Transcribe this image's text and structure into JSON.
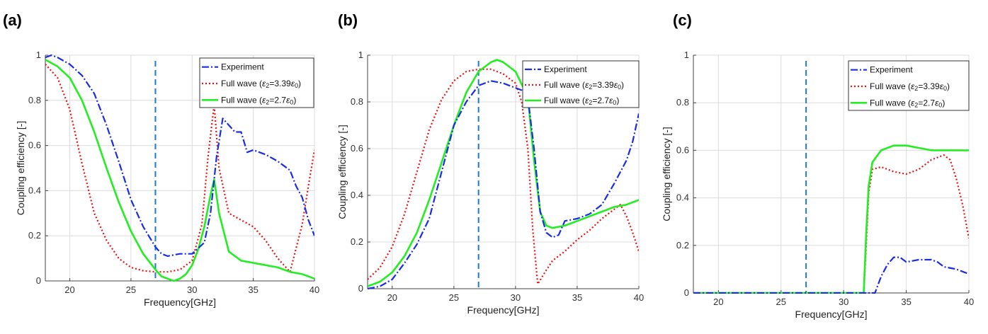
{
  "chart_data": [
    {
      "type": "line",
      "panel_label": "(a)",
      "xlabel": "Frequency[GHz]",
      "ylabel": "Coupling efficiency [-]",
      "xlim": [
        18,
        40
      ],
      "ylim": [
        0,
        1
      ],
      "xticks": [
        20,
        25,
        30,
        35,
        40
      ],
      "yticks": [
        0,
        0.2,
        0.4,
        0.6,
        0.8,
        1
      ],
      "ytick_labels": [
        "0",
        "0.2",
        "0.4",
        "0.6",
        "0.8",
        "1"
      ],
      "grid": true,
      "legend_position": "top-right",
      "vline_x": 27,
      "series": [
        {
          "name": "Experiment",
          "color": "#1a2de6",
          "style": "dashdot",
          "x": [
            18,
            18.5,
            19,
            20,
            21,
            22,
            23,
            24,
            25,
            26,
            27,
            27.5,
            28,
            29,
            30,
            31,
            31.5,
            32,
            32.5,
            33,
            33.5,
            34,
            34.5,
            35,
            35.5,
            36,
            37,
            38,
            38.5,
            39,
            39.5,
            40
          ],
          "y": [
            0.99,
            1.0,
            0.99,
            0.96,
            0.91,
            0.83,
            0.69,
            0.53,
            0.36,
            0.24,
            0.15,
            0.12,
            0.11,
            0.12,
            0.12,
            0.17,
            0.3,
            0.55,
            0.72,
            0.69,
            0.66,
            0.66,
            0.57,
            0.58,
            0.57,
            0.56,
            0.53,
            0.49,
            0.42,
            0.37,
            0.27,
            0.2
          ]
        },
        {
          "name": "Full wave (ε2=3.39ε0)",
          "color": "#ee1111",
          "style": "dotted",
          "x": [
            18,
            19,
            20,
            21,
            22,
            23,
            24,
            25,
            26,
            27,
            28,
            29,
            30,
            30.8,
            31.3,
            31.8,
            32.2,
            33,
            34,
            35,
            36,
            37,
            38,
            39,
            39.5,
            40
          ],
          "y": [
            0.96,
            0.9,
            0.76,
            0.52,
            0.3,
            0.18,
            0.1,
            0.06,
            0.045,
            0.04,
            0.04,
            0.05,
            0.09,
            0.25,
            0.55,
            0.78,
            0.5,
            0.3,
            0.27,
            0.24,
            0.18,
            0.1,
            0.04,
            0.25,
            0.42,
            0.58
          ]
        },
        {
          "name": "Full wave (ε2=2.7ε0)",
          "color": "#22ee22",
          "style": "solid",
          "x": [
            18,
            19,
            20,
            21,
            22,
            23,
            24,
            25,
            26,
            27,
            27.5,
            28,
            28.5,
            29,
            29.5,
            30,
            30.5,
            31,
            31.5,
            31.8,
            32.2,
            33,
            34,
            35,
            36,
            37,
            38,
            39,
            40
          ],
          "y": [
            0.98,
            0.95,
            0.9,
            0.8,
            0.66,
            0.5,
            0.35,
            0.22,
            0.12,
            0.05,
            0.02,
            0.01,
            0.0,
            0.01,
            0.03,
            0.07,
            0.14,
            0.24,
            0.38,
            0.45,
            0.3,
            0.13,
            0.09,
            0.08,
            0.07,
            0.06,
            0.04,
            0.03,
            0.01
          ]
        }
      ]
    },
    {
      "type": "line",
      "panel_label": "(b)",
      "xlabel": "Frequency[GHz]",
      "ylabel": "Coupling efficiency [-]",
      "xlim": [
        18,
        40
      ],
      "ylim": [
        0,
        1
      ],
      "xticks": [
        20,
        25,
        30,
        35,
        40
      ],
      "yticks": [
        0,
        0.2,
        0.4,
        0.6,
        0.8,
        1
      ],
      "ytick_labels": [
        "0",
        "0.2",
        "0.4",
        "0.6",
        "0.8",
        "1"
      ],
      "grid": true,
      "legend_position": "top-right",
      "vline_x": 27,
      "series": [
        {
          "name": "Experiment",
          "color": "#1a2de6",
          "style": "dashdot",
          "x": [
            18,
            19,
            20,
            21,
            22,
            23,
            24,
            25,
            26,
            27,
            28,
            29,
            30,
            30.5,
            31,
            31.5,
            32,
            32.5,
            33,
            33.5,
            34,
            35,
            36,
            37,
            38,
            39,
            39.5,
            40
          ],
          "y": [
            0.0,
            0.01,
            0.04,
            0.11,
            0.19,
            0.3,
            0.5,
            0.7,
            0.8,
            0.87,
            0.89,
            0.88,
            0.86,
            0.85,
            0.82,
            0.6,
            0.33,
            0.24,
            0.22,
            0.23,
            0.29,
            0.3,
            0.32,
            0.36,
            0.45,
            0.55,
            0.63,
            0.75
          ]
        },
        {
          "name": "Full wave (ε2=3.39ε0)",
          "color": "#ee1111",
          "style": "dotted",
          "x": [
            18,
            19,
            20,
            21,
            22,
            23,
            24,
            25,
            26,
            27,
            28,
            29,
            30,
            30.5,
            31,
            31.4,
            31.8,
            32.5,
            33,
            34,
            35,
            36,
            37,
            38,
            38.5,
            39,
            39.5,
            40
          ],
          "y": [
            0.04,
            0.09,
            0.18,
            0.32,
            0.5,
            0.68,
            0.81,
            0.89,
            0.93,
            0.94,
            0.94,
            0.92,
            0.88,
            0.8,
            0.6,
            0.25,
            0.02,
            0.08,
            0.12,
            0.16,
            0.21,
            0.25,
            0.3,
            0.34,
            0.36,
            0.31,
            0.24,
            0.16
          ]
        },
        {
          "name": "Full wave (ε2=2.7ε0)",
          "color": "#22ee22",
          "style": "solid",
          "x": [
            18,
            19,
            20,
            21,
            22,
            23,
            24,
            25,
            26,
            27,
            28,
            28.5,
            29,
            30,
            31,
            31.5,
            32,
            32.5,
            33,
            34,
            35,
            36,
            37,
            38,
            39,
            40
          ],
          "y": [
            0.01,
            0.03,
            0.07,
            0.14,
            0.24,
            0.38,
            0.54,
            0.7,
            0.84,
            0.93,
            0.97,
            0.98,
            0.97,
            0.93,
            0.82,
            0.55,
            0.33,
            0.27,
            0.26,
            0.27,
            0.29,
            0.31,
            0.33,
            0.35,
            0.36,
            0.38
          ]
        }
      ]
    },
    {
      "type": "line",
      "panel_label": "(c)",
      "xlabel": "Frequency[GHz]",
      "ylabel": "Coupling efficiency [-]",
      "xlim": [
        18,
        40
      ],
      "ylim": [
        0,
        1
      ],
      "xticks": [
        20,
        25,
        30,
        35,
        40
      ],
      "yticks": [
        0,
        0.2,
        0.4,
        0.6,
        0.8,
        1
      ],
      "ytick_labels": [
        "0",
        "0.2",
        "0.4",
        "0.6",
        "0.8",
        "1"
      ],
      "grid": true,
      "legend_position": "top-right",
      "vline_x": 27,
      "series": [
        {
          "name": "Experiment",
          "color": "#1a2de6",
          "style": "dashdot",
          "x": [
            18,
            20,
            25,
            30,
            31.8,
            32.5,
            33,
            33.5,
            34,
            34.5,
            35,
            36,
            37,
            37.5,
            38,
            39,
            39.5,
            40
          ],
          "y": [
            0.0,
            0.0,
            0.0,
            0.0,
            0.0,
            0.0,
            0.07,
            0.12,
            0.15,
            0.15,
            0.13,
            0.14,
            0.14,
            0.13,
            0.11,
            0.1,
            0.09,
            0.08
          ]
        },
        {
          "name": "Full wave (ε2=3.39ε0)",
          "color": "#ee1111",
          "style": "dotted",
          "x": [
            18,
            20,
            25,
            30,
            31.6,
            31.8,
            32,
            32.3,
            33,
            34,
            35,
            36,
            37,
            38,
            38.5,
            39,
            39.5,
            40
          ],
          "y": [
            0.0,
            0.0,
            0.0,
            0.0,
            0.0,
            0.2,
            0.42,
            0.52,
            0.53,
            0.51,
            0.5,
            0.52,
            0.56,
            0.58,
            0.56,
            0.48,
            0.37,
            0.23
          ]
        },
        {
          "name": "Full wave (ε2=2.7ε0)",
          "color": "#22ee22",
          "style": "solid",
          "x": [
            18,
            20,
            25,
            30,
            31.6,
            31.8,
            32,
            32.3,
            33,
            34,
            35,
            36,
            37,
            38,
            39,
            40
          ],
          "y": [
            0.0,
            0.0,
            0.0,
            0.0,
            0.0,
            0.25,
            0.45,
            0.55,
            0.6,
            0.62,
            0.62,
            0.61,
            0.6,
            0.6,
            0.6,
            0.6
          ]
        }
      ]
    }
  ]
}
